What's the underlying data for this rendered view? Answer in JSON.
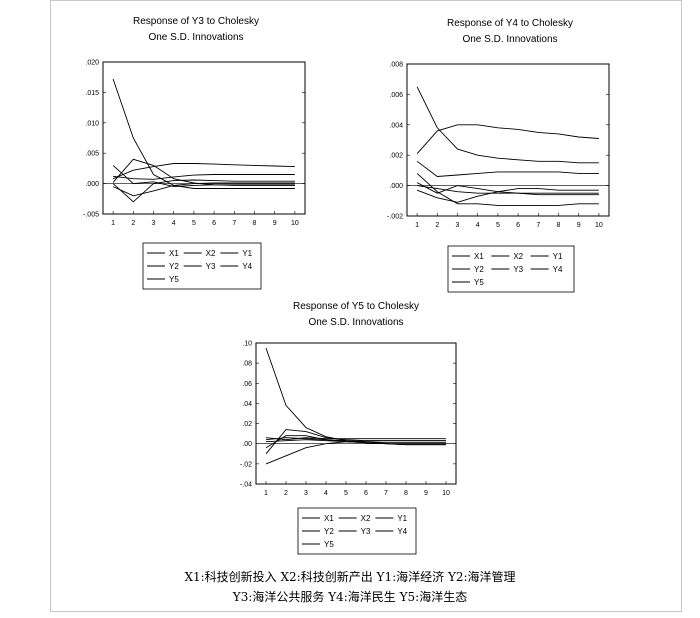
{
  "chart_data": [
    {
      "type": "line",
      "title": "Response of Y3 to Cholesky",
      "subtitle": "One S.D. Innovations",
      "x": [
        1,
        2,
        3,
        4,
        5,
        6,
        7,
        8,
        9,
        10
      ],
      "xticks": [
        "1",
        "2",
        "3",
        "4",
        "5",
        "6",
        "7",
        "8",
        "9",
        "10"
      ],
      "ylim": [
        -0.005,
        0.02
      ],
      "yticks": [
        -0.005,
        0.0,
        0.005,
        0.01,
        0.015,
        0.02
      ],
      "yticklabels": [
        "-.005",
        ".000",
        ".005",
        ".010",
        ".015",
        ".020"
      ],
      "legend": [
        "X1",
        "X2",
        "Y1",
        "Y2",
        "Y3",
        "Y4",
        "Y5"
      ],
      "series": [
        {
          "name": "Y3",
          "values": [
            0.0172,
            0.0075,
            0.0015,
            -0.0003,
            -0.0008,
            -0.0008,
            -0.0008,
            -0.0008,
            -0.0008,
            -0.0008
          ]
        },
        {
          "name": "X1",
          "values": [
            0.0002,
            0.004,
            0.003,
            0.0008,
            0.0001,
            -0.0002,
            -0.0003,
            -0.0003,
            -0.0003,
            -0.0003
          ]
        },
        {
          "name": "X2",
          "values": [
            0.0008,
            0.0022,
            0.0028,
            0.0033,
            0.0033,
            0.0032,
            0.0031,
            0.003,
            0.0029,
            0.0028
          ]
        },
        {
          "name": "Y1",
          "values": [
            0.0012,
            0.0008,
            0.0007,
            0.0011,
            0.0014,
            0.0015,
            0.0015,
            0.0015,
            0.0015,
            0.0015
          ]
        },
        {
          "name": "Y2",
          "values": [
            0.003,
            0.0,
            0.0003,
            -0.0005,
            -0.0003,
            -0.0002,
            -0.0002,
            -0.0002,
            -0.0002,
            -0.0002
          ]
        },
        {
          "name": "Y4",
          "values": [
            -0.0005,
            -0.002,
            -0.0012,
            -0.0003,
            0.0,
            0.0001,
            0.0001,
            0.0001,
            0.0001,
            0.0001
          ]
        },
        {
          "name": "Y5",
          "values": [
            0.0,
            -0.003,
            0.0,
            0.0005,
            0.0006,
            0.0005,
            0.0004,
            0.0004,
            0.0004,
            0.0004
          ]
        }
      ]
    },
    {
      "type": "line",
      "title": "Response of Y4 to Cholesky",
      "subtitle": "One S.D. Innovations",
      "x": [
        1,
        2,
        3,
        4,
        5,
        6,
        7,
        8,
        9,
        10
      ],
      "xticks": [
        "1",
        "2",
        "3",
        "4",
        "5",
        "6",
        "7",
        "8",
        "9",
        "10"
      ],
      "ylim": [
        -0.002,
        0.008
      ],
      "yticks": [
        -0.002,
        0.0,
        0.002,
        0.004,
        0.006,
        0.008
      ],
      "yticklabels": [
        "-.002",
        ".000",
        ".002",
        ".004",
        ".006",
        ".008"
      ],
      "legend": [
        "X1",
        "X2",
        "Y1",
        "Y2",
        "Y3",
        "Y4",
        "Y5"
      ],
      "series": [
        {
          "name": "Y4",
          "values": [
            0.0065,
            0.0038,
            0.0024,
            0.002,
            0.0018,
            0.0017,
            0.0016,
            0.0016,
            0.0015,
            0.0015
          ]
        },
        {
          "name": "X1",
          "values": [
            0.0021,
            0.0036,
            0.004,
            0.004,
            0.0038,
            0.0037,
            0.0035,
            0.0034,
            0.0032,
            0.0031
          ]
        },
        {
          "name": "X2",
          "values": [
            0.0016,
            0.0006,
            0.0007,
            0.0008,
            0.0009,
            0.0009,
            0.0009,
            0.0009,
            0.0008,
            0.0008
          ]
        },
        {
          "name": "Y1",
          "values": [
            0.0008,
            -0.0004,
            -0.0012,
            -0.0012,
            -0.0013,
            -0.0013,
            -0.0013,
            -0.0013,
            -0.0012,
            -0.0012
          ]
        },
        {
          "name": "Y2",
          "values": [
            0.0002,
            -0.0005,
            0.0,
            -0.0002,
            -0.0004,
            -0.0005,
            -0.0006,
            -0.0006,
            -0.0006,
            -0.0006
          ]
        },
        {
          "name": "Y3",
          "values": [
            -0.0003,
            -0.0008,
            -0.0011,
            -0.0007,
            -0.0004,
            -0.0002,
            -0.0002,
            -0.0003,
            -0.0003,
            -0.0003
          ]
        },
        {
          "name": "Y5",
          "values": [
            0.0,
            -0.0002,
            -0.0004,
            -0.0005,
            -0.0005,
            -0.0005,
            -0.0005,
            -0.0005,
            -0.0005,
            -0.0005
          ]
        }
      ]
    },
    {
      "type": "line",
      "title": "Response of Y5 to Cholesky",
      "subtitle": "One S.D. Innovations",
      "x": [
        1,
        2,
        3,
        4,
        5,
        6,
        7,
        8,
        9,
        10
      ],
      "xticks": [
        "1",
        "2",
        "3",
        "4",
        "5",
        "6",
        "7",
        "8",
        "9",
        "10"
      ],
      "ylim": [
        -0.04,
        0.1
      ],
      "yticks": [
        -0.04,
        -0.02,
        0.0,
        0.02,
        0.04,
        0.06,
        0.08,
        0.1
      ],
      "yticklabels": [
        "-.04",
        "-.02",
        ".00",
        ".02",
        ".04",
        ".06",
        ".08",
        ".10"
      ],
      "legend": [
        "X1",
        "X2",
        "Y1",
        "Y2",
        "Y3",
        "Y4",
        "Y5"
      ],
      "series": [
        {
          "name": "Y5",
          "values": [
            0.095,
            0.038,
            0.016,
            0.007,
            0.003,
            0.001,
            0.0,
            -0.001,
            -0.001,
            -0.001
          ]
        },
        {
          "name": "X1",
          "values": [
            -0.01,
            0.014,
            0.012,
            0.006,
            0.004,
            0.003,
            0.003,
            0.003,
            0.003,
            0.003
          ]
        },
        {
          "name": "X2",
          "values": [
            -0.02,
            -0.012,
            -0.004,
            0.0,
            0.002,
            0.003,
            0.003,
            0.003,
            0.003,
            0.003
          ]
        },
        {
          "name": "Y1",
          "values": [
            0.006,
            0.004,
            0.006,
            0.005,
            0.005,
            0.005,
            0.005,
            0.005,
            0.005,
            0.005
          ]
        },
        {
          "name": "Y2",
          "values": [
            0.004,
            0.006,
            0.005,
            0.004,
            0.003,
            0.002,
            0.001,
            0.001,
            0.001,
            0.001
          ]
        },
        {
          "name": "Y3",
          "values": [
            0.002,
            0.003,
            0.004,
            0.003,
            0.002,
            0.001,
            0.0,
            0.0,
            0.0,
            0.0
          ]
        },
        {
          "name": "Y4",
          "values": [
            -0.004,
            0.008,
            0.008,
            0.004,
            0.002,
            0.001,
            0.0,
            -0.001,
            -0.001,
            -0.001
          ]
        }
      ]
    }
  ],
  "caption": {
    "line1": "X1:科技创新投入 X2:科技创新产出 Y1:海洋经济 Y2:海洋管理",
    "line2": "Y3:海洋公共服务 Y4:海洋民生 Y5:海洋生态"
  }
}
